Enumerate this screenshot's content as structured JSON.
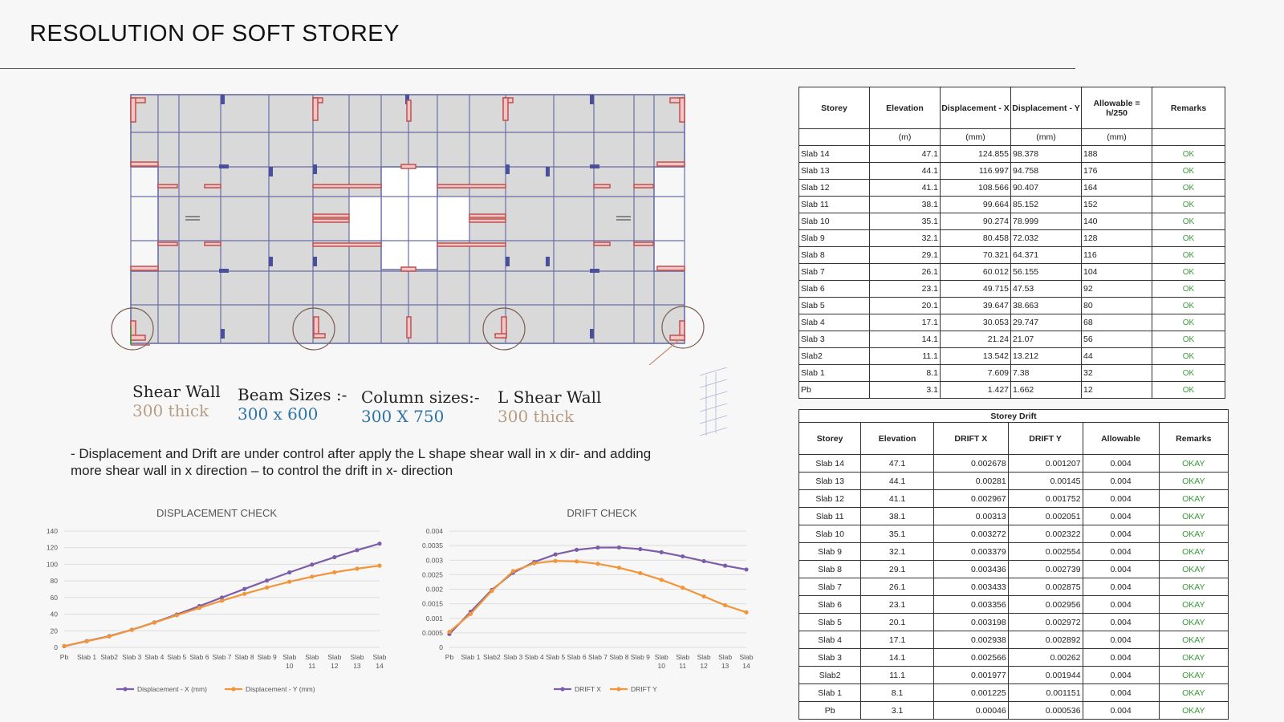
{
  "title": "RESOLUTION OF SOFT STOREY",
  "legend": {
    "shear_wall_key": "Shear Wall",
    "shear_wall_val": "300 thick",
    "beam_key": "Beam Sizes :-",
    "beam_val": "300 x 600",
    "column_key": "Column sizes:-",
    "column_val": "300 X 750",
    "lwall_key": "L Shear Wall",
    "lwall_val": "300 thick"
  },
  "note_line1": "- Displacement and Drift are under control after apply the L shape shear wall in x dir- and adding",
  "note_line2": "more shear wall in x direction – to control the drift in x- direction",
  "displacement_table": {
    "headers": [
      "Storey",
      "Elevation",
      "Displacement - X",
      "Displacement - Y",
      "Allowable = h/250",
      "Remarks"
    ],
    "units": [
      "",
      "(m)",
      "(mm)",
      "(mm)",
      "(mm)",
      ""
    ],
    "rows": [
      [
        "Slab 14",
        "47.1",
        "124.855",
        "98.378",
        "188",
        "OK"
      ],
      [
        "Slab 13",
        "44.1",
        "116.997",
        "94.758",
        "176",
        "OK"
      ],
      [
        "Slab 12",
        "41.1",
        "108.566",
        "90.407",
        "164",
        "OK"
      ],
      [
        "Slab 11",
        "38.1",
        "99.664",
        "85.152",
        "152",
        "OK"
      ],
      [
        "Slab 10",
        "35.1",
        "90.274",
        "78.999",
        "140",
        "OK"
      ],
      [
        "Slab 9",
        "32.1",
        "80.458",
        "72.032",
        "128",
        "OK"
      ],
      [
        "Slab 8",
        "29.1",
        "70.321",
        "64.371",
        "116",
        "OK"
      ],
      [
        "Slab 7",
        "26.1",
        "60.012",
        "56.155",
        "104",
        "OK"
      ],
      [
        "Slab 6",
        "23.1",
        "49.715",
        "47.53",
        "92",
        "OK"
      ],
      [
        "Slab 5",
        "20.1",
        "39.647",
        "38.663",
        "80",
        "OK"
      ],
      [
        "Slab 4",
        "17.1",
        "30.053",
        "29.747",
        "68",
        "OK"
      ],
      [
        "Slab 3",
        "14.1",
        "21.24",
        "21.07",
        "56",
        "OK"
      ],
      [
        "Slab2",
        "11.1",
        "13.542",
        "13.212",
        "44",
        "OK"
      ],
      [
        "Slab 1",
        "8.1",
        "7.609",
        "7.38",
        "32",
        "OK"
      ],
      [
        "Pb",
        "3.1",
        "1.427",
        "1.662",
        "12",
        "OK"
      ]
    ]
  },
  "drift_table": {
    "caption": "Storey Drift",
    "headers": [
      "Storey",
      "Elevation",
      "DRIFT X",
      "DRIFT Y",
      "Allowable",
      "Remarks"
    ],
    "rows": [
      [
        "Slab 14",
        "47.1",
        "0.002678",
        "0.001207",
        "0.004",
        "OKAY"
      ],
      [
        "Slab 13",
        "44.1",
        "0.00281",
        "0.00145",
        "0.004",
        "OKAY"
      ],
      [
        "Slab 12",
        "41.1",
        "0.002967",
        "0.001752",
        "0.004",
        "OKAY"
      ],
      [
        "Slab 11",
        "38.1",
        "0.00313",
        "0.002051",
        "0.004",
        "OKAY"
      ],
      [
        "Slab 10",
        "35.1",
        "0.003272",
        "0.002322",
        "0.004",
        "OKAY"
      ],
      [
        "Slab 9",
        "32.1",
        "0.003379",
        "0.002554",
        "0.004",
        "OKAY"
      ],
      [
        "Slab 8",
        "29.1",
        "0.003436",
        "0.002739",
        "0.004",
        "OKAY"
      ],
      [
        "Slab 7",
        "26.1",
        "0.003433",
        "0.002875",
        "0.004",
        "OKAY"
      ],
      [
        "Slab 6",
        "23.1",
        "0.003356",
        "0.002956",
        "0.004",
        "OKAY"
      ],
      [
        "Slab 5",
        "20.1",
        "0.003198",
        "0.002972",
        "0.004",
        "OKAY"
      ],
      [
        "Slab 4",
        "17.1",
        "0.002938",
        "0.002892",
        "0.004",
        "OKAY"
      ],
      [
        "Slab 3",
        "14.1",
        "0.002566",
        "0.00262",
        "0.004",
        "OKAY"
      ],
      [
        "Slab2",
        "11.1",
        "0.001977",
        "0.001944",
        "0.004",
        "OKAY"
      ],
      [
        "Slab 1",
        "8.1",
        "0.001225",
        "0.001151",
        "0.004",
        "OKAY"
      ],
      [
        "Pb",
        "3.1",
        "0.00046",
        "0.000536",
        "0.004",
        "OKAY"
      ]
    ]
  },
  "colors": {
    "series_x": "#7b5ea7",
    "series_y": "#f2953a",
    "ok_green": "#3a9a3a",
    "wall_red": "#c0504d",
    "plan_grid": "#6a6fa8"
  },
  "chart_data": [
    {
      "type": "line",
      "title": "DISPLACEMENT CHECK",
      "categories": [
        "Pb",
        "Slab 1",
        "Slab2",
        "Slab 3",
        "Slab 4",
        "Slab 5",
        "Slab 6",
        "Slab 7",
        "Slab 8",
        "Slab 9",
        "Slab 10",
        "Slab 11",
        "Slab 12",
        "Slab 13",
        "Slab 14"
      ],
      "category_lines": [
        [
          "Pb"
        ],
        [
          "Slab 1"
        ],
        [
          "Slab2"
        ],
        [
          "Slab 3"
        ],
        [
          "Slab 4"
        ],
        [
          "Slab 5"
        ],
        [
          "Slab 6"
        ],
        [
          "Slab 7"
        ],
        [
          "Slab 8"
        ],
        [
          "Slab 9"
        ],
        [
          "Slab",
          "10"
        ],
        [
          "Slab",
          "11"
        ],
        [
          "Slab",
          "12"
        ],
        [
          "Slab",
          "13"
        ],
        [
          "Slab",
          "14"
        ]
      ],
      "series": [
        {
          "name": "Displacement - X (mm)",
          "values": [
            1.427,
            7.609,
            13.542,
            21.24,
            30.053,
            39.647,
            49.715,
            60.012,
            70.321,
            80.458,
            90.274,
            99.664,
            108.566,
            116.997,
            124.855
          ]
        },
        {
          "name": "Displacement - Y (mm)",
          "values": [
            1.662,
            7.38,
            13.212,
            21.07,
            29.747,
            38.663,
            47.53,
            56.155,
            64.371,
            72.032,
            78.999,
            85.152,
            90.407,
            94.758,
            98.378
          ]
        }
      ],
      "ylim": [
        0,
        140
      ],
      "yticks": [
        0,
        20,
        40,
        60,
        80,
        100,
        120,
        140
      ],
      "ytick_labels": [
        "0",
        "20",
        "40",
        "60",
        "80",
        "100",
        "120",
        "140"
      ],
      "grid": true,
      "legend": "bottom"
    },
    {
      "type": "line",
      "title": "DRIFT CHECK",
      "categories": [
        "Pb",
        "Slab 1",
        "Slab2",
        "Slab 3",
        "Slab 4",
        "Slab 5",
        "Slab 6",
        "Slab 7",
        "Slab 8",
        "Slab 9",
        "Slab 10",
        "Slab 11",
        "Slab 12",
        "Slab 13",
        "Slab 14"
      ],
      "category_lines": [
        [
          "Pb"
        ],
        [
          "Slab 1"
        ],
        [
          "Slab2"
        ],
        [
          "Slab 3"
        ],
        [
          "Slab 4"
        ],
        [
          "Slab 5"
        ],
        [
          "Slab 6"
        ],
        [
          "Slab 7"
        ],
        [
          "Slab 8"
        ],
        [
          "Slab 9"
        ],
        [
          "Slab",
          "10"
        ],
        [
          "Slab",
          "11"
        ],
        [
          "Slab",
          "12"
        ],
        [
          "Slab",
          "13"
        ],
        [
          "Slab",
          "14"
        ]
      ],
      "series": [
        {
          "name": "DRIFT X",
          "values": [
            0.00046,
            0.001225,
            0.001977,
            0.002566,
            0.002938,
            0.003198,
            0.003356,
            0.003433,
            0.003436,
            0.003379,
            0.003272,
            0.00313,
            0.002967,
            0.00281,
            0.002678
          ]
        },
        {
          "name": "DRIFT Y",
          "values": [
            0.000536,
            0.001151,
            0.001944,
            0.00262,
            0.002892,
            0.002972,
            0.002956,
            0.002875,
            0.002739,
            0.002554,
            0.002322,
            0.002051,
            0.001752,
            0.00145,
            0.001207
          ]
        }
      ],
      "ylim": [
        0,
        0.004
      ],
      "yticks": [
        0,
        0.0005,
        0.001,
        0.0015,
        0.002,
        0.0025,
        0.003,
        0.0035,
        0.004
      ],
      "ytick_labels": [
        "0",
        "0.0005",
        "0.001",
        "0.0015",
        "0.002",
        "0.0025",
        "0.003",
        "0.0035",
        "0.004"
      ],
      "grid": true,
      "legend": "bottom"
    }
  ]
}
